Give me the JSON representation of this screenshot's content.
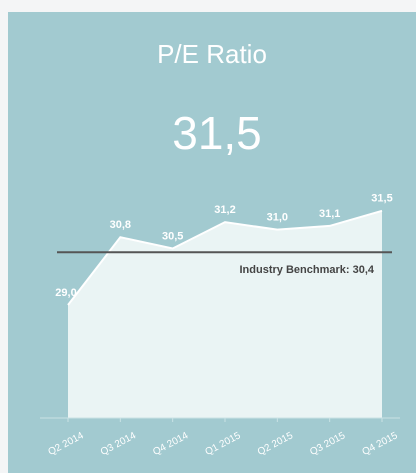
{
  "chart_data": {
    "type": "area",
    "title": "P/E Ratio",
    "headline": "31,5",
    "categories": [
      "Q2 2014",
      "Q3 2014",
      "Q4 2014",
      "Q1 2015",
      "Q2 2015",
      "Q3 2015",
      "Q4 2015"
    ],
    "values": [
      29.0,
      30.8,
      30.5,
      31.2,
      31.0,
      31.1,
      31.5
    ],
    "value_labels": [
      "29,0",
      "30,8",
      "30,5",
      "31,2",
      "31,0",
      "31,1",
      "31,5"
    ],
    "color": "#eaf4f4",
    "ylim": [
      26,
      32
    ],
    "benchmark": {
      "value": 30.4,
      "label": "Industry Benchmark: 30,4",
      "color": "#555555"
    }
  }
}
